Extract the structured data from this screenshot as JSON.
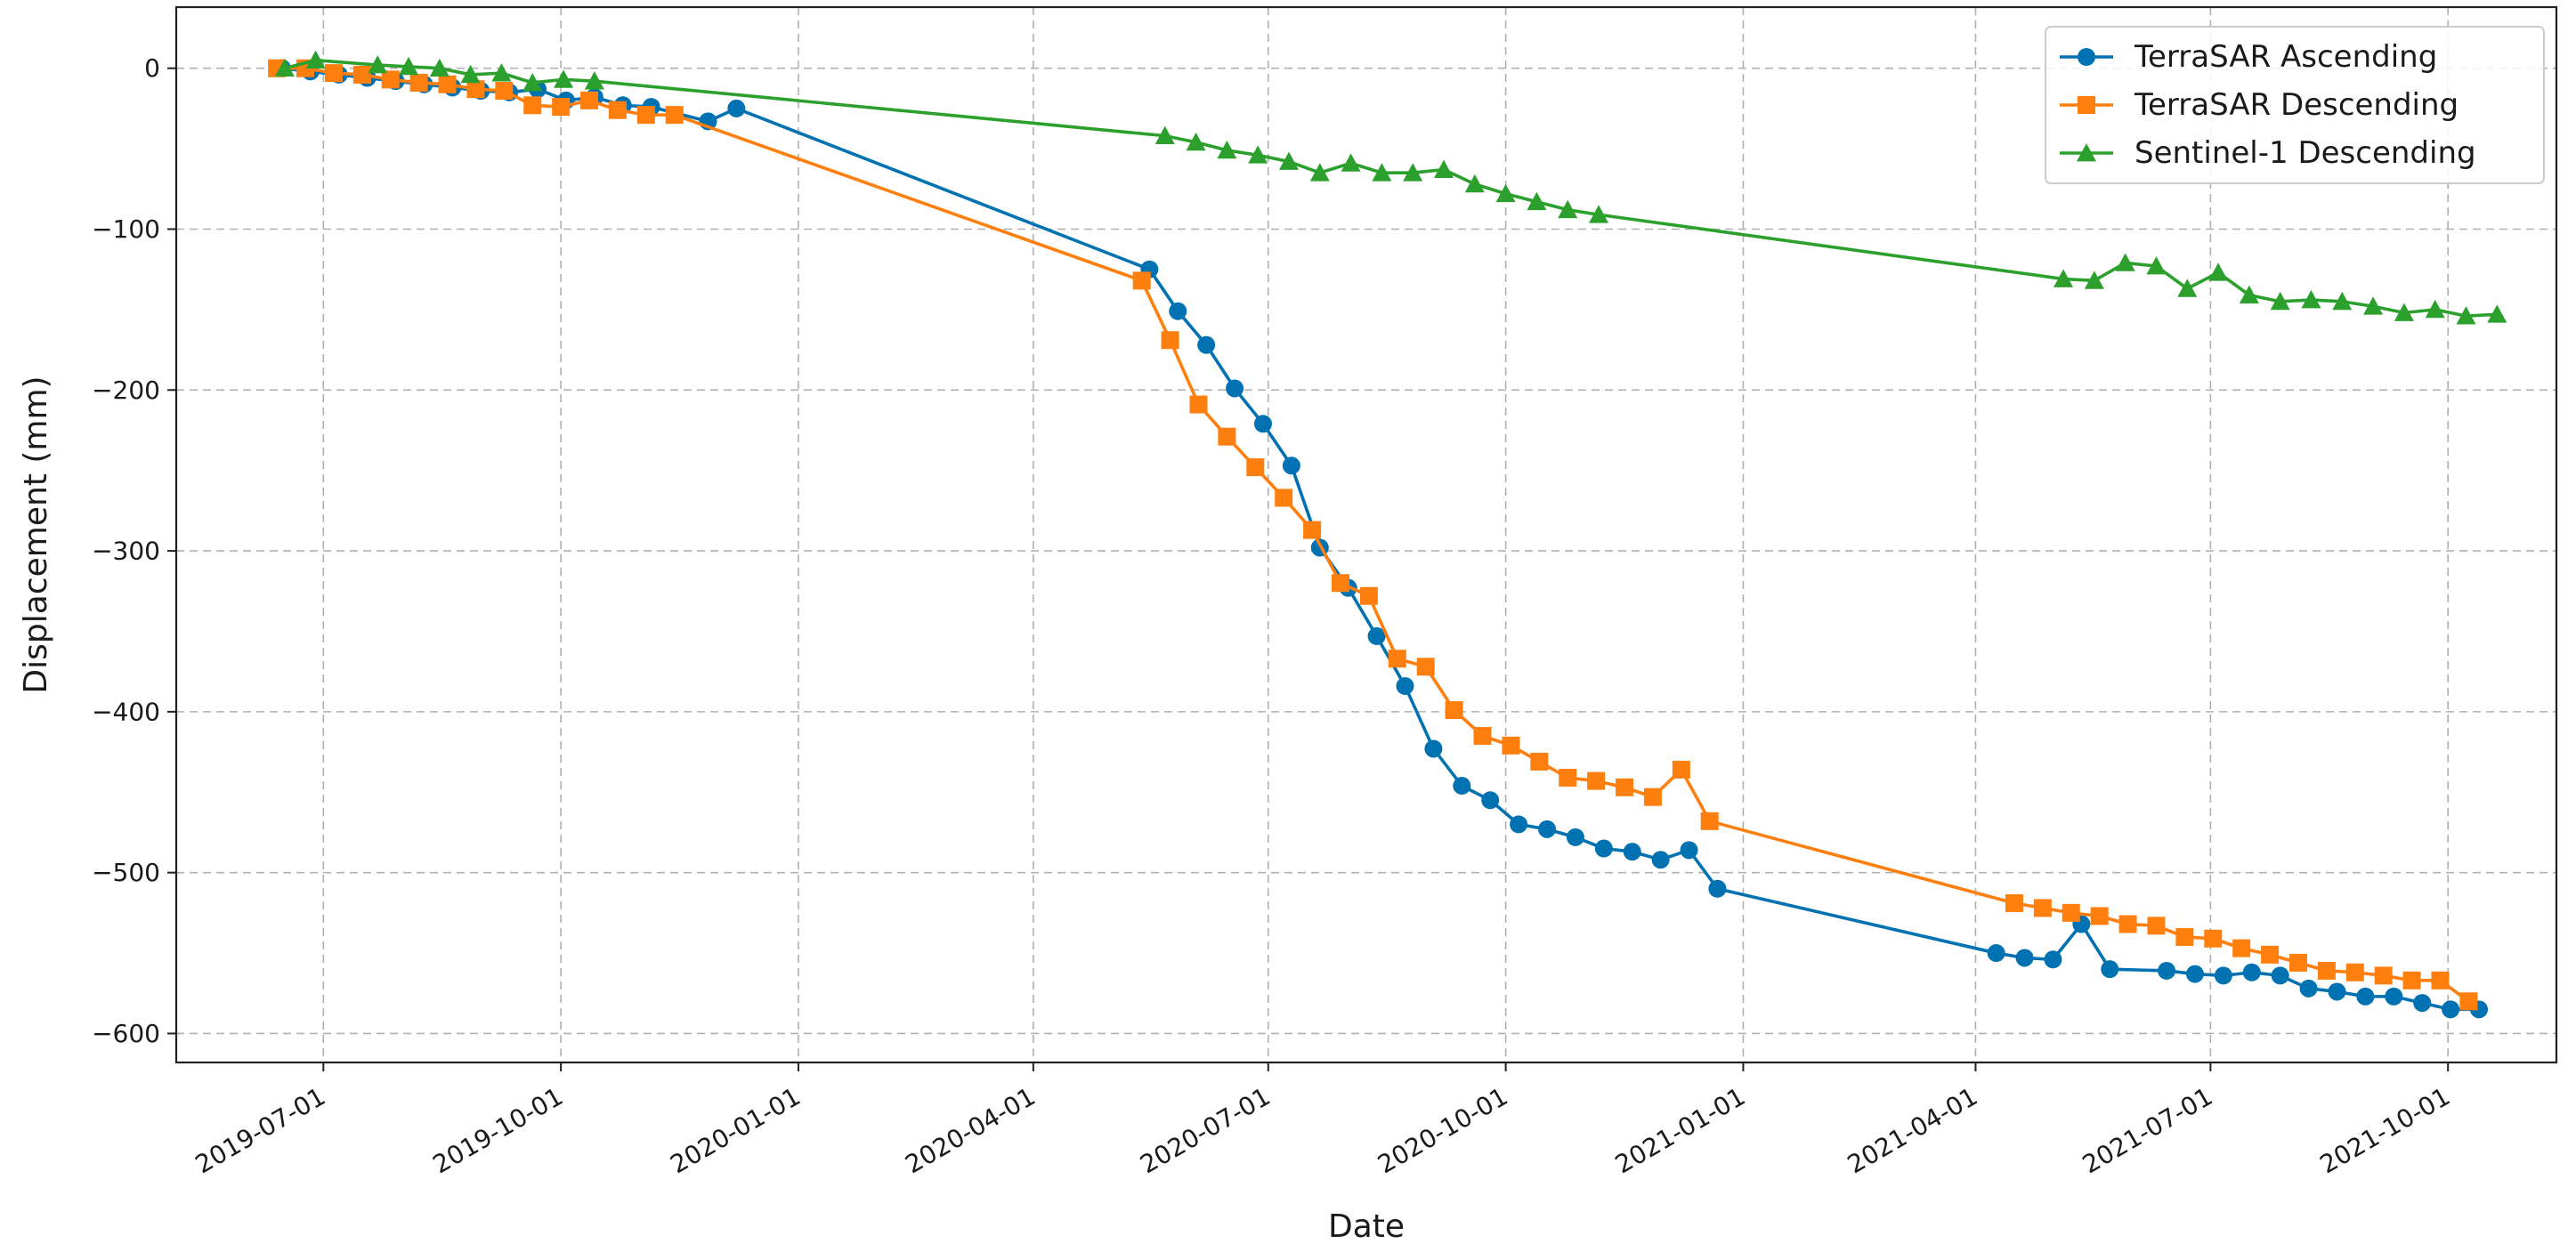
{
  "chart_data": {
    "type": "line",
    "title": "",
    "xlabel": "Date",
    "ylabel": "Displacement (mm)",
    "x_axis_type": "date",
    "xlim": [
      "2019-05-05",
      "2021-11-12"
    ],
    "ylim": [
      -618,
      38
    ],
    "x_ticks": [
      "2019-07-01",
      "2019-10-01",
      "2020-01-01",
      "2020-04-01",
      "2020-07-01",
      "2020-10-01",
      "2021-01-01",
      "2021-04-01",
      "2021-07-01",
      "2021-10-01"
    ],
    "y_ticks": [
      0,
      -100,
      -200,
      -300,
      -400,
      -500,
      -600
    ],
    "grid": true,
    "legend_position": "top-right",
    "series": [
      {
        "name": "TerraSAR Ascending",
        "color": "#0072b2",
        "marker": "circle",
        "points": [
          [
            "2019-06-15",
            0
          ],
          [
            "2019-06-26",
            -2
          ],
          [
            "2019-07-07",
            -4
          ],
          [
            "2019-07-18",
            -6
          ],
          [
            "2019-07-29",
            -8
          ],
          [
            "2019-08-09",
            -10
          ],
          [
            "2019-08-20",
            -12
          ],
          [
            "2019-08-31",
            -14
          ],
          [
            "2019-09-11",
            -15
          ],
          [
            "2019-09-22",
            -13
          ],
          [
            "2019-10-03",
            -20
          ],
          [
            "2019-10-14",
            -18
          ],
          [
            "2019-10-25",
            -23
          ],
          [
            "2019-11-05",
            -24
          ],
          [
            "2019-11-27",
            -33
          ],
          [
            "2019-12-08",
            -25
          ],
          [
            "2020-05-16",
            -125
          ],
          [
            "2020-05-27",
            -151
          ],
          [
            "2020-06-07",
            -172
          ],
          [
            "2020-06-18",
            -199
          ],
          [
            "2020-06-29",
            -221
          ],
          [
            "2020-07-10",
            -247
          ],
          [
            "2020-07-21",
            -298
          ],
          [
            "2020-08-01",
            -323
          ],
          [
            "2020-08-12",
            -353
          ],
          [
            "2020-08-23",
            -384
          ],
          [
            "2020-09-03",
            -423
          ],
          [
            "2020-09-14",
            -446
          ],
          [
            "2020-09-25",
            -455
          ],
          [
            "2020-10-06",
            -470
          ],
          [
            "2020-10-17",
            -473
          ],
          [
            "2020-10-28",
            -478
          ],
          [
            "2020-11-08",
            -485
          ],
          [
            "2020-11-19",
            -487
          ],
          [
            "2020-11-30",
            -492
          ],
          [
            "2020-12-11",
            -486
          ],
          [
            "2020-12-22",
            -510
          ],
          [
            "2021-04-09",
            -550
          ],
          [
            "2021-04-20",
            -553
          ],
          [
            "2021-05-01",
            -554
          ],
          [
            "2021-05-12",
            -532
          ],
          [
            "2021-05-23",
            -560
          ],
          [
            "2021-06-14",
            -561
          ],
          [
            "2021-06-25",
            -563
          ],
          [
            "2021-07-06",
            -564
          ],
          [
            "2021-07-17",
            -562
          ],
          [
            "2021-07-28",
            -564
          ],
          [
            "2021-08-08",
            -572
          ],
          [
            "2021-08-19",
            -574
          ],
          [
            "2021-08-30",
            -577
          ],
          [
            "2021-09-10",
            -577
          ],
          [
            "2021-09-21",
            -581
          ],
          [
            "2021-10-02",
            -585
          ],
          [
            "2021-10-13",
            -585
          ]
        ]
      },
      {
        "name": "TerraSAR Descending",
        "color": "#ff7f0e",
        "marker": "square",
        "points": [
          [
            "2019-06-13",
            0
          ],
          [
            "2019-06-24",
            0
          ],
          [
            "2019-07-05",
            -3
          ],
          [
            "2019-07-16",
            -4
          ],
          [
            "2019-07-27",
            -7
          ],
          [
            "2019-08-07",
            -9
          ],
          [
            "2019-08-18",
            -10
          ],
          [
            "2019-08-29",
            -13
          ],
          [
            "2019-09-09",
            -14
          ],
          [
            "2019-09-20",
            -23
          ],
          [
            "2019-10-01",
            -24
          ],
          [
            "2019-10-12",
            -20
          ],
          [
            "2019-10-23",
            -26
          ],
          [
            "2019-11-03",
            -29
          ],
          [
            "2019-11-14",
            -29
          ],
          [
            "2020-05-13",
            -132
          ],
          [
            "2020-05-24",
            -169
          ],
          [
            "2020-06-04",
            -209
          ],
          [
            "2020-06-15",
            -229
          ],
          [
            "2020-06-26",
            -248
          ],
          [
            "2020-07-07",
            -267
          ],
          [
            "2020-07-18",
            -287
          ],
          [
            "2020-07-29",
            -320
          ],
          [
            "2020-08-09",
            -328
          ],
          [
            "2020-08-20",
            -367
          ],
          [
            "2020-08-31",
            -372
          ],
          [
            "2020-09-11",
            -399
          ],
          [
            "2020-09-22",
            -415
          ],
          [
            "2020-10-03",
            -421
          ],
          [
            "2020-10-14",
            -431
          ],
          [
            "2020-10-25",
            -441
          ],
          [
            "2020-11-05",
            -443
          ],
          [
            "2020-11-16",
            -447
          ],
          [
            "2020-11-27",
            -453
          ],
          [
            "2020-12-08",
            -436
          ],
          [
            "2020-12-19",
            -468
          ],
          [
            "2021-04-16",
            -519
          ],
          [
            "2021-04-27",
            -522
          ],
          [
            "2021-05-08",
            -525
          ],
          [
            "2021-05-19",
            -527
          ],
          [
            "2021-05-30",
            -532
          ],
          [
            "2021-06-10",
            -533
          ],
          [
            "2021-06-21",
            -540
          ],
          [
            "2021-07-02",
            -541
          ],
          [
            "2021-07-13",
            -547
          ],
          [
            "2021-07-24",
            -551
          ],
          [
            "2021-08-04",
            -556
          ],
          [
            "2021-08-15",
            -561
          ],
          [
            "2021-08-26",
            -562
          ],
          [
            "2021-09-06",
            -564
          ],
          [
            "2021-09-17",
            -567
          ],
          [
            "2021-09-28",
            -567
          ],
          [
            "2021-10-09",
            -580
          ]
        ]
      },
      {
        "name": "Sentinel-1 Descending",
        "color": "#2ca02c",
        "marker": "triangle",
        "points": [
          [
            "2019-06-16",
            0
          ],
          [
            "2019-06-28",
            5
          ],
          [
            "2019-07-22",
            2
          ],
          [
            "2019-08-03",
            1
          ],
          [
            "2019-08-15",
            0
          ],
          [
            "2019-08-27",
            -4
          ],
          [
            "2019-09-08",
            -3
          ],
          [
            "2019-09-20",
            -9
          ],
          [
            "2019-10-02",
            -7
          ],
          [
            "2019-10-14",
            -8
          ],
          [
            "2020-05-22",
            -42
          ],
          [
            "2020-06-03",
            -46
          ],
          [
            "2020-06-15",
            -51
          ],
          [
            "2020-06-27",
            -54
          ],
          [
            "2020-07-09",
            -58
          ],
          [
            "2020-07-21",
            -65
          ],
          [
            "2020-08-02",
            -59
          ],
          [
            "2020-08-14",
            -65
          ],
          [
            "2020-08-26",
            -65
          ],
          [
            "2020-09-07",
            -63
          ],
          [
            "2020-09-19",
            -72
          ],
          [
            "2020-10-01",
            -78
          ],
          [
            "2020-10-13",
            -83
          ],
          [
            "2020-10-25",
            -88
          ],
          [
            "2020-11-06",
            -91
          ],
          [
            "2021-05-05",
            -131
          ],
          [
            "2021-05-17",
            -132
          ],
          [
            "2021-05-29",
            -121
          ],
          [
            "2021-06-10",
            -123
          ],
          [
            "2021-06-22",
            -137
          ],
          [
            "2021-07-04",
            -127
          ],
          [
            "2021-07-16",
            -141
          ],
          [
            "2021-07-28",
            -145
          ],
          [
            "2021-08-09",
            -144
          ],
          [
            "2021-08-21",
            -145
          ],
          [
            "2021-09-02",
            -148
          ],
          [
            "2021-09-14",
            -152
          ],
          [
            "2021-09-26",
            -150
          ],
          [
            "2021-10-08",
            -154
          ],
          [
            "2021-10-20",
            -153
          ]
        ]
      }
    ]
  }
}
